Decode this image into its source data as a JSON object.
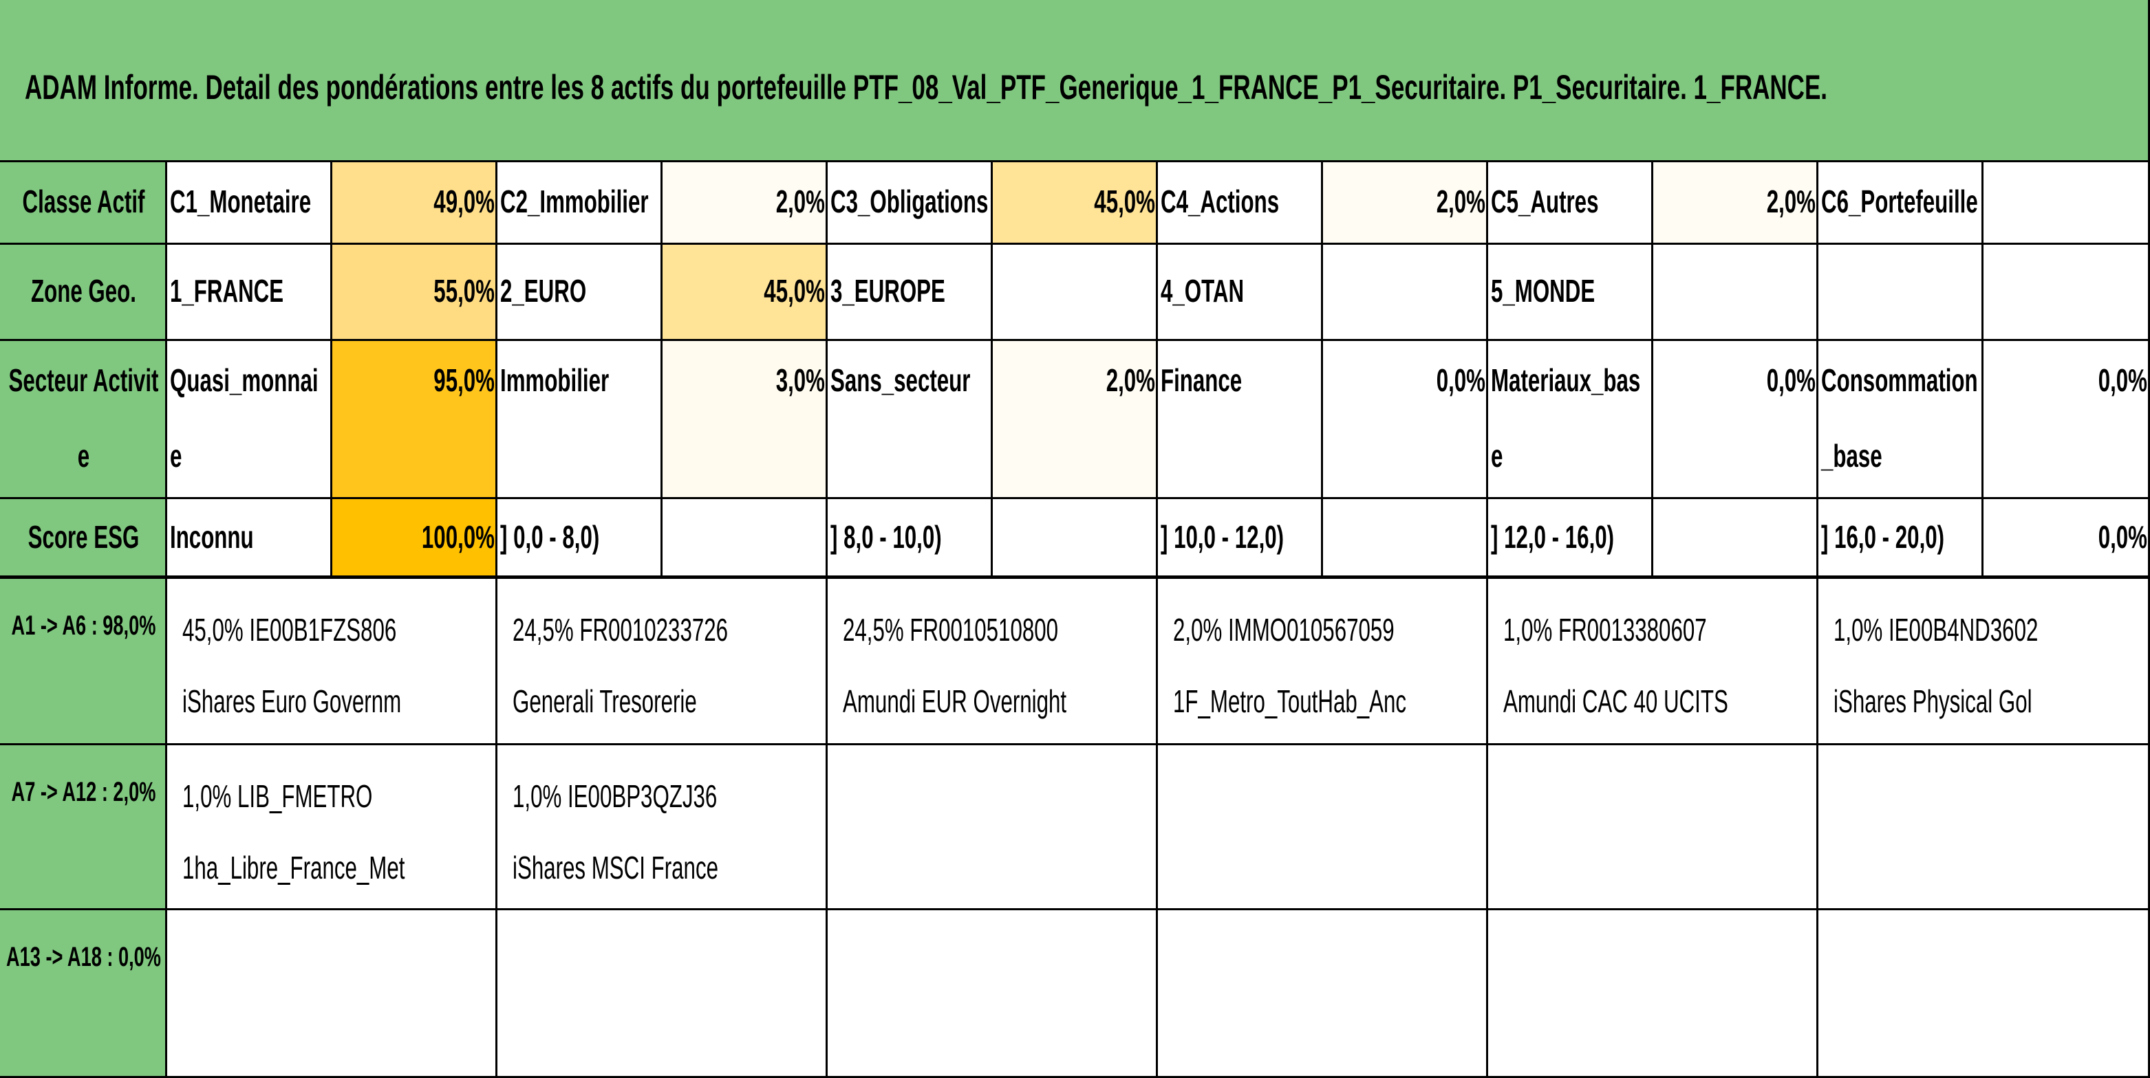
{
  "header": {
    "title": "ADAM Informe. Detail des pondérations entre les 8 actifs du portefeuille PTF_08_Val_PTF_Generique_1_FRANCE_P1_Securitaire. P1_Securitaire. 1_FRANCE."
  },
  "table": {
    "rows": [
      {
        "label": "Classe Actif",
        "items": [
          {
            "name": "C1_Monetaire",
            "value": "49,0%",
            "fill": "#ffdf8c"
          },
          {
            "name": "C2_Immobilier",
            "value": "2,0%",
            "fill": "#fffcf4"
          },
          {
            "name": "C3_Obligations",
            "value": "45,0%",
            "fill": "#ffe397"
          },
          {
            "name": "C4_Actions",
            "value": "2,0%",
            "fill": "#fffcf4"
          },
          {
            "name": "C5_Autres",
            "value": "2,0%",
            "fill": "#fffcf4"
          },
          {
            "name": "C6_Portefeuille",
            "value": null,
            "fill": null
          }
        ]
      },
      {
        "label": "Zone Geo.",
        "items": [
          {
            "name": "1_FRANCE",
            "value": "55,0%",
            "fill": "#ffdc82"
          },
          {
            "name": "2_EURO",
            "value": "45,0%",
            "fill": "#ffe397"
          },
          {
            "name": "3_EUROPE",
            "value": null,
            "fill": null
          },
          {
            "name": "4_OTAN",
            "value": null,
            "fill": null
          },
          {
            "name": "5_MONDE",
            "value": null,
            "fill": null
          },
          {
            "name": null,
            "value": null,
            "fill": null
          }
        ]
      },
      {
        "label": "Secteur Activite",
        "items": [
          {
            "name": "Quasi_monnaie",
            "value": "95,0%",
            "fill": "#ffc51c"
          },
          {
            "name": "Immobilier",
            "value": "3,0%",
            "fill": "#fffbef"
          },
          {
            "name": "Sans_secteur",
            "value": "2,0%",
            "fill": "#fffcf4"
          },
          {
            "name": "Finance",
            "value": "0,0%",
            "fill": null
          },
          {
            "name": "Materiaux_base",
            "value": "0,0%",
            "fill": null
          },
          {
            "name": "Consommation_base",
            "value": "0,0%",
            "fill": null
          }
        ]
      },
      {
        "label": "Score ESG",
        "items": [
          {
            "name": "Inconnu",
            "value": "100,0%",
            "fill": "#ffc000"
          },
          {
            "name": "] 0,0 - 8,0)",
            "value": null,
            "fill": null
          },
          {
            "name": "] 8,0 - 10,0)",
            "value": null,
            "fill": null
          },
          {
            "name": "] 10,0 - 12,0)",
            "value": null,
            "fill": null
          },
          {
            "name": "] 12,0 - 16,0)",
            "value": null,
            "fill": null
          },
          {
            "name": "] 16,0 - 20,0)",
            "value": "0,0%",
            "fill": null
          }
        ]
      }
    ]
  },
  "holdings": {
    "rows": [
      {
        "label": "A1 -> A6 : 98,0%",
        "items": [
          {
            "code": "45,0% IE00B1FZS806",
            "name": "iShares Euro Governm"
          },
          {
            "code": "24,5% FR0010233726",
            "name": "Generali Tresorerie"
          },
          {
            "code": "24,5% FR0010510800",
            "name": "Amundi EUR Overnight"
          },
          {
            "code": "2,0% IMMO010567059",
            "name": "1F_Metro_ToutHab_Anc"
          },
          {
            "code": "1,0% FR0013380607",
            "name": "Amundi CAC 40 UCITS"
          },
          {
            "code": "1,0% IE00B4ND3602",
            "name": "iShares Physical Gol"
          }
        ]
      },
      {
        "label": "A7 -> A12 : 2,0%",
        "items": [
          {
            "code": "1,0% LIB_FMETRO",
            "name": "1ha_Libre_France_Met"
          },
          {
            "code": "1,0% IE00BP3QZJ36",
            "name": "iShares MSCI France"
          }
        ]
      },
      {
        "label": "A13 -> A18 : 0,0%",
        "items": []
      }
    ]
  }
}
